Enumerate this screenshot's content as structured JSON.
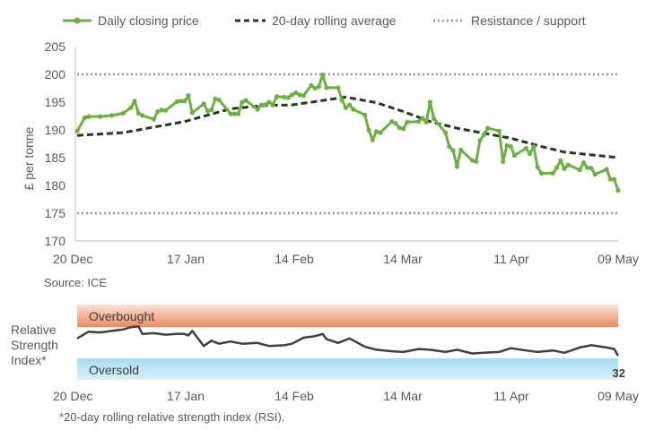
{
  "colors": {
    "price": "#70ad47",
    "rolling": "#1f3b17",
    "resistance": "#8497b0",
    "axis": "#bfbfbf",
    "overbought_top": "#fbe1d6",
    "overbought_bottom": "#ec8a64",
    "oversold_top": "#a8dcf2",
    "oversold_bottom": "#d9f1fb",
    "rsi_line": "#404040"
  },
  "chart_data": [
    {
      "type": "line",
      "title": "",
      "xlabel": "",
      "ylabel": "£ per tonne",
      "ylim": [
        170,
        205
      ],
      "yticks": [
        170,
        175,
        180,
        185,
        190,
        195,
        200,
        205
      ],
      "xlim": [
        "20 Dec",
        "09 May"
      ],
      "xticks": [
        "20 Dec",
        "17 Jan",
        "14 Feb",
        "14 Mar",
        "11 Apr",
        "09 May"
      ],
      "grid": false,
      "legend_position": "top",
      "source": "Source: ICE",
      "series": [
        {
          "name": "Daily closing price",
          "style": "line-with-markers",
          "x": [
            "2023-12-20",
            "2023-12-22",
            "2023-12-23",
            "2023-12-26",
            "2023-12-29",
            "2024-01-01",
            "2024-01-03",
            "2024-01-04",
            "2024-01-05",
            "2024-01-06",
            "2024-01-09",
            "2024-01-10",
            "2024-01-11",
            "2024-01-12",
            "2024-01-15",
            "2024-01-16",
            "2024-01-17",
            "2024-01-18",
            "2024-01-19",
            "2024-01-22",
            "2024-01-23",
            "2024-01-24",
            "2024-01-25",
            "2024-01-26",
            "2024-01-29",
            "2024-01-30",
            "2024-01-31",
            "2024-02-01",
            "2024-02-02",
            "2024-02-05",
            "2024-02-06",
            "2024-02-07",
            "2024-02-08",
            "2024-02-09",
            "2024-02-10",
            "2024-02-12",
            "2024-02-13",
            "2024-02-14",
            "2024-02-15",
            "2024-02-16",
            "2024-02-17",
            "2024-02-19",
            "2024-02-20",
            "2024-02-21",
            "2024-02-22",
            "2024-02-23",
            "2024-02-26",
            "2024-02-27",
            "2024-02-28",
            "2024-02-29",
            "2024-03-01",
            "2024-03-04",
            "2024-03-05",
            "2024-03-06",
            "2024-03-07",
            "2024-03-08",
            "2024-03-11",
            "2024-03-12",
            "2024-03-13",
            "2024-03-14",
            "2024-03-15",
            "2024-03-18",
            "2024-03-19",
            "2024-03-20",
            "2024-03-21",
            "2024-03-22",
            "2024-03-25",
            "2024-03-26",
            "2024-03-27",
            "2024-03-28",
            "2024-03-29",
            "2024-04-01",
            "2024-04-02",
            "2024-04-03",
            "2024-04-04",
            "2024-04-05",
            "2024-04-08",
            "2024-04-09",
            "2024-04-10",
            "2024-04-11",
            "2024-04-12",
            "2024-04-15",
            "2024-04-16",
            "2024-04-17",
            "2024-04-18",
            "2024-04-19",
            "2024-04-22",
            "2024-04-23",
            "2024-04-24",
            "2024-04-25",
            "2024-04-26",
            "2024-04-29",
            "2024-04-30",
            "2024-05-01",
            "2024-05-02",
            "2024-05-03",
            "2024-05-06",
            "2024-05-07",
            "2024-05-08",
            "2024-05-09"
          ],
          "values": [
            189.8,
            192.2,
            192.4,
            192.4,
            192.6,
            193.0,
            194.0,
            195.2,
            193.0,
            192.6,
            191.9,
            193.3,
            193.6,
            193.5,
            195.1,
            195.2,
            195.2,
            196.2,
            193.1,
            194.7,
            193.4,
            193.6,
            195.6,
            195.4,
            192.9,
            192.9,
            192.9,
            195.0,
            195.3,
            193.7,
            194.5,
            194.5,
            195.0,
            194.5,
            196.0,
            195.9,
            195.8,
            196.3,
            196.7,
            196.3,
            196.2,
            198.0,
            197.5,
            197.8,
            199.9,
            197.6,
            197.6,
            195.4,
            194.0,
            194.5,
            193.7,
            192.7,
            190.0,
            188.2,
            189.7,
            189.5,
            191.5,
            191.2,
            190.4,
            190.2,
            191.4,
            191.5,
            192.1,
            191.4,
            195.0,
            192.0,
            189.5,
            187.0,
            186.3,
            183.4,
            186.4,
            184.5,
            184.3,
            188.1,
            189.1,
            190.3,
            189.8,
            184.3,
            187.2,
            187.0,
            185.4,
            186.7,
            185.7,
            187.0,
            183.3,
            182.2,
            182.2,
            183.2,
            184.5,
            183.0,
            183.7,
            182.8,
            184.1,
            183.2,
            183.1,
            182.0,
            182.9,
            181.1,
            181.1,
            179.1
          ]
        },
        {
          "name": "20-day rolling average",
          "style": "dashed",
          "x": [
            "2023-12-20",
            "2024-01-01",
            "2024-01-17",
            "2024-01-29",
            "2024-02-07",
            "2024-02-14",
            "2024-02-21",
            "2024-02-28",
            "2024-03-07",
            "2024-03-14",
            "2024-03-21",
            "2024-03-28",
            "2024-04-04",
            "2024-04-11",
            "2024-04-18",
            "2024-04-25",
            "2024-05-02",
            "2024-05-09"
          ],
          "values": [
            189.0,
            189.5,
            191.5,
            193.8,
            194.4,
            194.5,
            195.2,
            195.9,
            194.9,
            193.3,
            191.5,
            190.3,
            189.4,
            188.5,
            187.2,
            186.0,
            185.5,
            185.0
          ]
        },
        {
          "name": "Resistance / support",
          "style": "dotted",
          "levels": [
            200,
            175
          ]
        }
      ]
    },
    {
      "type": "line",
      "title": "",
      "ylabel": "Relative Strength Index*",
      "ylim": [
        0,
        100
      ],
      "bands": [
        {
          "label": "Overbought",
          "from": 70,
          "to": 100
        },
        {
          "label": "Oversold",
          "from": 0,
          "to": 30
        }
      ],
      "xticks": [
        "20 Dec",
        "17 Jan",
        "14 Feb",
        "14 Mar",
        "11 Apr",
        "09 May"
      ],
      "last_value_label": "32",
      "footnote": "*20-day rolling relative strength index (RSI).",
      "series": [
        {
          "name": "RSI",
          "x": [
            "2023-12-20",
            "2023-12-23",
            "2023-12-26",
            "2023-12-29",
            "2024-01-01",
            "2024-01-03",
            "2024-01-05",
            "2024-01-06",
            "2024-01-09",
            "2024-01-12",
            "2024-01-15",
            "2024-01-17",
            "2024-01-18",
            "2024-01-19",
            "2024-01-22",
            "2024-01-24",
            "2024-01-26",
            "2024-01-29",
            "2024-02-01",
            "2024-02-05",
            "2024-02-08",
            "2024-02-12",
            "2024-02-14",
            "2024-02-17",
            "2024-02-20",
            "2024-02-22",
            "2024-02-23",
            "2024-02-26",
            "2024-02-29",
            "2024-03-04",
            "2024-03-07",
            "2024-03-11",
            "2024-03-14",
            "2024-03-18",
            "2024-03-21",
            "2024-03-25",
            "2024-03-28",
            "2024-04-01",
            "2024-04-04",
            "2024-04-08",
            "2024-04-11",
            "2024-04-15",
            "2024-04-18",
            "2024-04-22",
            "2024-04-25",
            "2024-04-29",
            "2024-05-02",
            "2024-05-06",
            "2024-05-08",
            "2024-05-09"
          ],
          "values": [
            55,
            64,
            63,
            65,
            67,
            70,
            71,
            61,
            62,
            60,
            61,
            61,
            59,
            65,
            45,
            52,
            48,
            51,
            48,
            49,
            45,
            46,
            48,
            56,
            58,
            61,
            54,
            49,
            55,
            44,
            40,
            38,
            37,
            41,
            40,
            37,
            40,
            35,
            36,
            37,
            42,
            39,
            37,
            39,
            36,
            43,
            46,
            43,
            41,
            32
          ]
        }
      ]
    }
  ]
}
